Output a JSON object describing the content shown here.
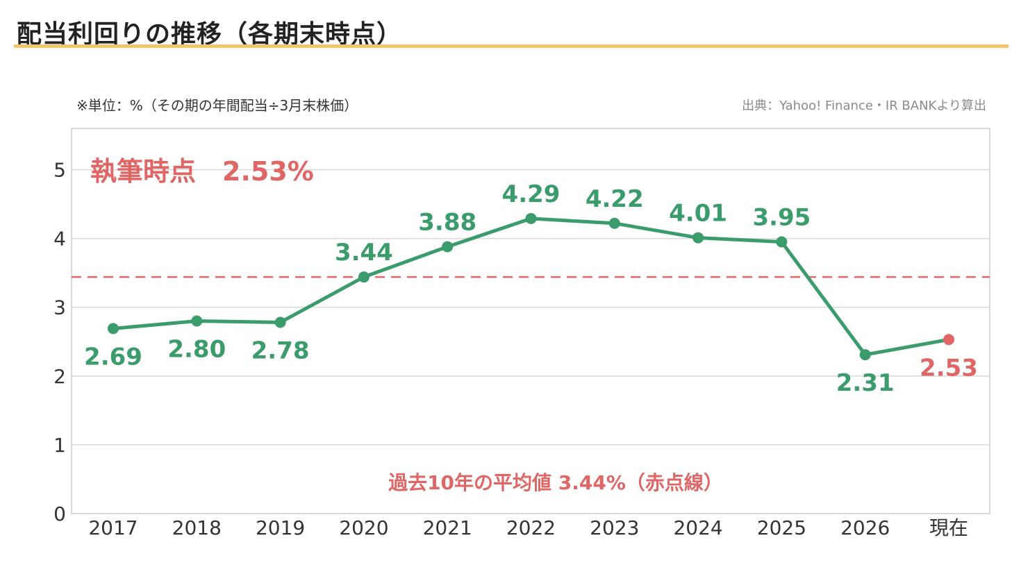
{
  "header": {
    "title": "配当利回りの推移（各期末時点）",
    "unit_note": "※単位：%（その期の年間配当÷3月末株価）",
    "source_note": "出典：Yahoo! Finance・IR BANKより算出"
  },
  "colors": {
    "series": "#3a9b6b",
    "highlight": "#e06666",
    "average_line": "#e06666",
    "title_rule": "#f2c46a",
    "grid": "#d9d9d9"
  },
  "chart_data": {
    "type": "line",
    "categories": [
      "2017",
      "2018",
      "2019",
      "2020",
      "2021",
      "2022",
      "2023",
      "2024",
      "2025",
      "2026",
      "現在"
    ],
    "series": [
      {
        "values": [
          2.69,
          2.8,
          2.78,
          3.44,
          3.88,
          4.29,
          4.22,
          4.01,
          3.95,
          2.31,
          2.53
        ],
        "labels": [
          "2.69",
          "2.80",
          "2.78",
          "3.44",
          "3.88",
          "4.29",
          "4.22",
          "4.01",
          "3.95",
          "2.31",
          "2.53"
        ]
      }
    ],
    "ylim": [
      0,
      5.6
    ],
    "yticks": [
      "0",
      "1",
      "2",
      "3",
      "4",
      "5"
    ],
    "grid": true,
    "average_value": 3.44,
    "current_callout": "執筆時点　2.53%",
    "average_callout": "過去10年の平均値 3.44%（赤点線）"
  }
}
